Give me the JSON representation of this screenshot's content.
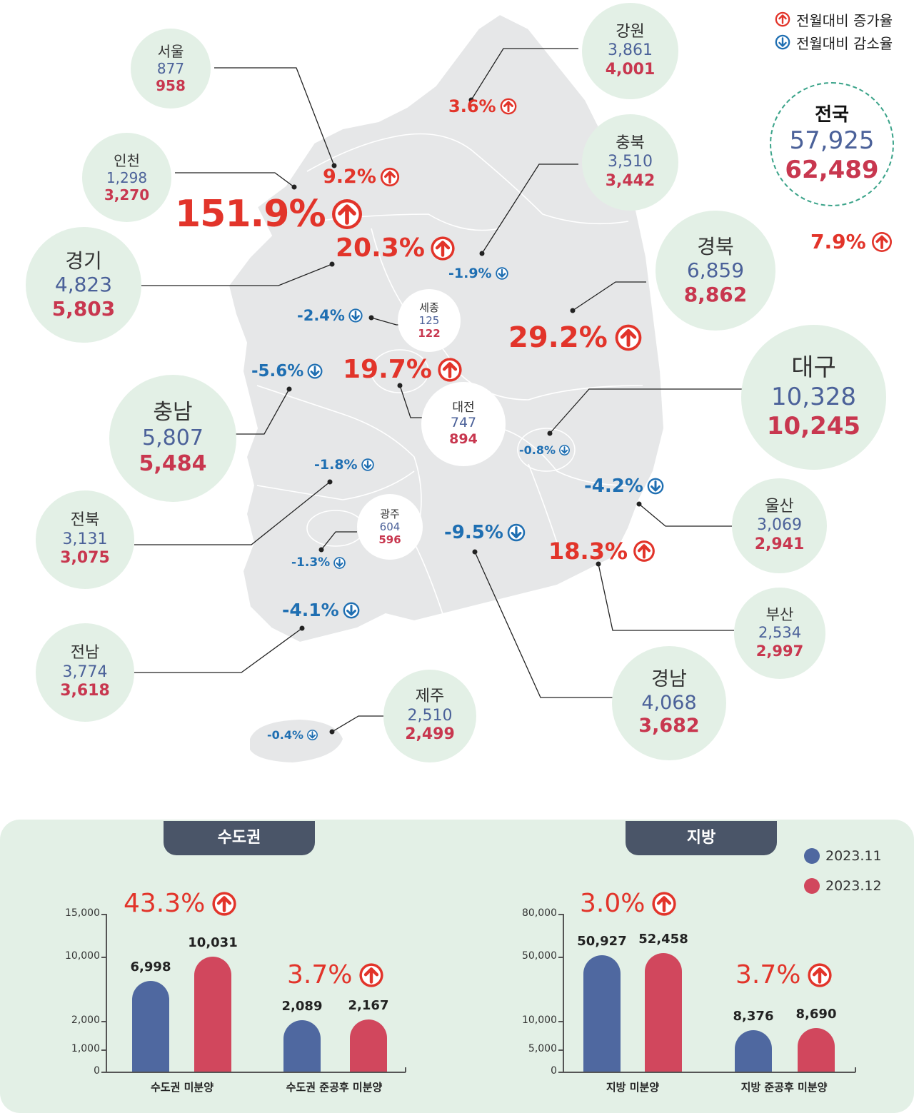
{
  "legend": {
    "increase_label": "전월대비 증가율",
    "decrease_label": "전월대비 감소율",
    "increase_icon": "arrow-up-circle-icon",
    "decrease_icon": "arrow-down-circle-icon",
    "colors": {
      "increase": "#e2342a",
      "decrease": "#1f6fb2",
      "prev": "#4b6199",
      "curr": "#c8374f"
    }
  },
  "national": {
    "name": "전국",
    "prev": "57,925",
    "curr": "62,489",
    "change": "7.9%",
    "direction": "up"
  },
  "regions": {
    "seoul": {
      "name": "서울",
      "prev": "877",
      "curr": "958",
      "change": "9.2%",
      "direction": "up"
    },
    "incheon": {
      "name": "인천",
      "prev": "1,298",
      "curr": "3,270",
      "change": "151.9%",
      "direction": "up"
    },
    "gyeonggi": {
      "name": "경기",
      "prev": "4,823",
      "curr": "5,803",
      "change": "20.3%",
      "direction": "up"
    },
    "gangwon": {
      "name": "강원",
      "prev": "3,861",
      "curr": "4,001",
      "change": "3.6%",
      "direction": "up"
    },
    "chungbuk": {
      "name": "충북",
      "prev": "3,510",
      "curr": "3,442",
      "change": "-1.9%",
      "direction": "down"
    },
    "gyeongbuk": {
      "name": "경북",
      "prev": "6,859",
      "curr": "8,862",
      "change": "29.2%",
      "direction": "up"
    },
    "sejong": {
      "name": "세종",
      "prev": "125",
      "curr": "122",
      "change": "-2.4%",
      "direction": "down"
    },
    "chungnam": {
      "name": "충남",
      "prev": "5,807",
      "curr": "5,484",
      "change": "-5.6%",
      "direction": "down"
    },
    "daejeon": {
      "name": "대전",
      "prev": "747",
      "curr": "894",
      "change": "19.7%",
      "direction": "up"
    },
    "daegu": {
      "name": "대구",
      "prev": "10,328",
      "curr": "10,245",
      "change": "-0.8%",
      "direction": "down"
    },
    "jeonbuk": {
      "name": "전북",
      "prev": "3,131",
      "curr": "3,075",
      "change": "-1.8%",
      "direction": "down"
    },
    "gwangju": {
      "name": "광주",
      "prev": "604",
      "curr": "596",
      "change": "-1.3%",
      "direction": "down"
    },
    "ulsan": {
      "name": "울산",
      "prev": "3,069",
      "curr": "2,941",
      "change": "-4.2%",
      "direction": "down"
    },
    "gyeongnam": {
      "name": "경남",
      "prev": "4,068",
      "curr": "3,682",
      "change": "-9.5%",
      "direction": "down"
    },
    "busan": {
      "name": "부산",
      "prev": "2,534",
      "curr": "2,997",
      "change": "18.3%",
      "direction": "up"
    },
    "jeonnam": {
      "name": "전남",
      "prev": "3,774",
      "curr": "3,618",
      "change": "-4.1%",
      "direction": "down"
    },
    "jeju": {
      "name": "제주",
      "prev": "2,510",
      "curr": "2,499",
      "change": "-0.4%",
      "direction": "down"
    }
  },
  "chart_data": [
    {
      "type": "bar",
      "title": "수도권",
      "categories": [
        "수도권 미분양",
        "수도권 준공후 미분양"
      ],
      "series": [
        {
          "name": "2023.11",
          "values": [
            6998,
            2089
          ]
        },
        {
          "name": "2023.12",
          "values": [
            10031,
            2167
          ]
        }
      ],
      "value_labels": {
        "2023.11": [
          "6,998",
          "2,089"
        ],
        "2023.12": [
          "10,031",
          "2,167"
        ]
      },
      "changes": [
        "43.3%",
        "3.7%"
      ],
      "yticks": [
        "15,000",
        "10,000",
        "2,000",
        "1,000",
        "0"
      ],
      "ytick_values": [
        15000,
        10000,
        2000,
        1000,
        0
      ],
      "ylim": [
        0,
        15000
      ]
    },
    {
      "type": "bar",
      "title": "지방",
      "categories": [
        "지방 미분양",
        "지방 준공후 미분양"
      ],
      "series": [
        {
          "name": "2023.11",
          "values": [
            50927,
            8376
          ]
        },
        {
          "name": "2023.12",
          "values": [
            52458,
            8690
          ]
        }
      ],
      "value_labels": {
        "2023.11": [
          "50,927",
          "8,376"
        ],
        "2023.12": [
          "52,458",
          "8,690"
        ]
      },
      "changes": [
        "3.0%",
        "3.7%"
      ],
      "yticks": [
        "80,000",
        "50,000",
        "10,000",
        "5,000",
        "0"
      ],
      "ytick_values": [
        80000,
        50000,
        10000,
        5000,
        0
      ],
      "ylim": [
        0,
        80000
      ]
    }
  ],
  "chart_legend": {
    "prev": "2023.11",
    "curr": "2023.12"
  }
}
